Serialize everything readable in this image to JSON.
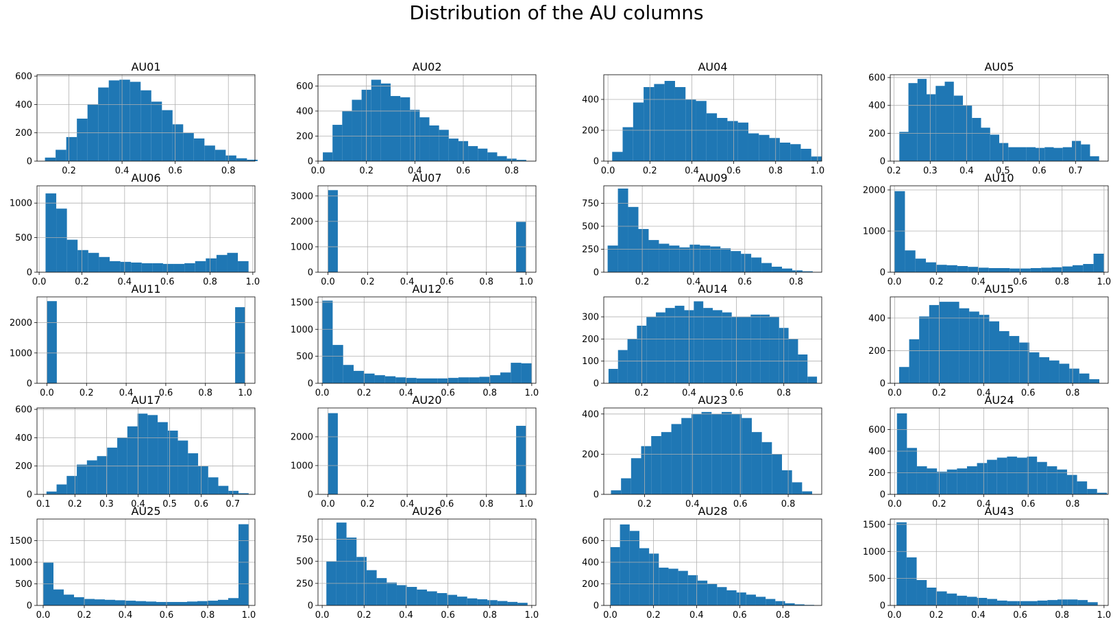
{
  "figure": {
    "title": "Distribution of the AU columns"
  },
  "colors": {
    "bar": "#1f77b4",
    "grid": "#b0b0b0",
    "axis": "#000000"
  },
  "chart_data": [
    {
      "type": "bar",
      "title": "AU01",
      "xlim": [
        0.08,
        0.9
      ],
      "ylim": [
        0,
        610
      ],
      "xticks": [
        "0.2",
        "0.4",
        "0.6",
        "0.8"
      ],
      "yticks": [
        "0",
        "200",
        "400",
        "600"
      ],
      "bins": [
        0.11,
        0.15,
        0.19,
        0.23,
        0.27,
        0.31,
        0.35,
        0.39,
        0.43,
        0.47,
        0.51,
        0.55,
        0.59,
        0.63,
        0.67,
        0.71,
        0.75,
        0.79,
        0.83,
        0.87
      ],
      "values": [
        25,
        80,
        170,
        300,
        400,
        520,
        570,
        575,
        560,
        500,
        420,
        360,
        260,
        200,
        160,
        110,
        80,
        40,
        20,
        10
      ],
      "grid": true
    },
    {
      "type": "bar",
      "title": "AU02",
      "xlim": [
        0.0,
        0.9
      ],
      "ylim": [
        0,
        690
      ],
      "xticks": [
        "0.0",
        "0.2",
        "0.4",
        "0.6",
        "0.8"
      ],
      "yticks": [
        "0",
        "200",
        "400",
        "600"
      ],
      "bins": [
        0.02,
        0.06,
        0.1,
        0.14,
        0.18,
        0.22,
        0.26,
        0.3,
        0.34,
        0.38,
        0.42,
        0.46,
        0.5,
        0.54,
        0.58,
        0.62,
        0.66,
        0.7,
        0.74,
        0.78,
        0.82
      ],
      "values": [
        70,
        290,
        400,
        490,
        570,
        650,
        620,
        520,
        510,
        410,
        350,
        285,
        250,
        180,
        160,
        120,
        100,
        70,
        40,
        20,
        10
      ],
      "grid": true
    },
    {
      "type": "bar",
      "title": "AU04",
      "xlim": [
        -0.02,
        1.02
      ],
      "ylim": [
        0,
        560
      ],
      "xticks": [
        "0.0",
        "0.2",
        "0.4",
        "0.6",
        "0.8",
        "1.0"
      ],
      "yticks": [
        "0",
        "200",
        "400"
      ],
      "bins": [
        0.02,
        0.07,
        0.12,
        0.17,
        0.22,
        0.27,
        0.32,
        0.37,
        0.42,
        0.47,
        0.52,
        0.57,
        0.62,
        0.67,
        0.72,
        0.77,
        0.82,
        0.87,
        0.92,
        0.97
      ],
      "values": [
        60,
        220,
        380,
        480,
        500,
        520,
        480,
        400,
        390,
        310,
        280,
        260,
        250,
        180,
        170,
        150,
        120,
        110,
        80,
        30
      ],
      "grid": true
    },
    {
      "type": "bar",
      "title": "AU05",
      "xlim": [
        0.19,
        0.79
      ],
      "ylim": [
        0,
        620
      ],
      "xticks": [
        "0.2",
        "0.3",
        "0.4",
        "0.5",
        "0.6",
        "0.7"
      ],
      "yticks": [
        "0",
        "200",
        "400",
        "600"
      ],
      "bins": [
        0.215,
        0.24,
        0.265,
        0.29,
        0.315,
        0.34,
        0.365,
        0.39,
        0.415,
        0.44,
        0.465,
        0.49,
        0.515,
        0.54,
        0.565,
        0.59,
        0.615,
        0.64,
        0.665,
        0.69,
        0.715,
        0.74
      ],
      "values": [
        210,
        560,
        590,
        480,
        540,
        570,
        470,
        400,
        310,
        240,
        190,
        130,
        100,
        100,
        100,
        95,
        100,
        95,
        100,
        145,
        120,
        35
      ],
      "grid": true
    },
    {
      "type": "bar",
      "title": "AU06",
      "xlim": [
        -0.01,
        1.01
      ],
      "ylim": [
        0,
        1250
      ],
      "xticks": [
        "0.0",
        "0.2",
        "0.4",
        "0.6",
        "0.8",
        "1.0"
      ],
      "yticks": [
        "0",
        "500",
        "1000"
      ],
      "bins": [
        0.03,
        0.08,
        0.13,
        0.18,
        0.23,
        0.28,
        0.33,
        0.38,
        0.43,
        0.48,
        0.53,
        0.58,
        0.63,
        0.68,
        0.73,
        0.78,
        0.83,
        0.88,
        0.93
      ],
      "values": [
        1140,
        920,
        470,
        320,
        280,
        220,
        160,
        150,
        140,
        130,
        130,
        120,
        120,
        130,
        160,
        200,
        250,
        280,
        160
      ],
      "grid": true
    },
    {
      "type": "bar",
      "title": "AU07",
      "xlim": [
        -0.05,
        1.05
      ],
      "ylim": [
        0,
        3400
      ],
      "xticks": [
        "0.0",
        "0.2",
        "0.4",
        "0.6",
        "0.8",
        "1.0"
      ],
      "yticks": [
        "0",
        "1000",
        "2000",
        "3000"
      ],
      "bins": [
        0.0,
        0.05,
        0.1,
        0.15,
        0.2,
        0.25,
        0.3,
        0.35,
        0.4,
        0.45,
        0.5,
        0.55,
        0.6,
        0.65,
        0.7,
        0.75,
        0.8,
        0.85,
        0.9,
        0.95
      ],
      "values": [
        3230,
        0,
        0,
        0,
        0,
        0,
        0,
        0,
        0,
        0,
        0,
        0,
        0,
        0,
        0,
        0,
        0,
        0,
        0,
        1980
      ],
      "grid": true
    },
    {
      "type": "bar",
      "title": "AU09",
      "xlim": [
        0.05,
        0.9
      ],
      "ylim": [
        0,
        940
      ],
      "xticks": [
        "0.2",
        "0.4",
        "0.6",
        "0.8"
      ],
      "yticks": [
        "0",
        "250",
        "500",
        "750"
      ],
      "bins": [
        0.065,
        0.105,
        0.145,
        0.185,
        0.225,
        0.265,
        0.305,
        0.345,
        0.385,
        0.425,
        0.465,
        0.505,
        0.545,
        0.585,
        0.625,
        0.665,
        0.705,
        0.745,
        0.785,
        0.825
      ],
      "values": [
        290,
        910,
        710,
        470,
        350,
        310,
        290,
        270,
        300,
        290,
        280,
        260,
        230,
        200,
        160,
        100,
        60,
        40,
        20,
        10
      ],
      "grid": true
    },
    {
      "type": "bar",
      "title": "AU10",
      "xlim": [
        -0.02,
        1.02
      ],
      "ylim": [
        0,
        2100
      ],
      "xticks": [
        "0.0",
        "0.2",
        "0.4",
        "0.6",
        "0.8",
        "1.0"
      ],
      "yticks": [
        "0",
        "1000",
        "2000"
      ],
      "bins": [
        0.0,
        0.05,
        0.1,
        0.15,
        0.2,
        0.25,
        0.3,
        0.35,
        0.4,
        0.45,
        0.5,
        0.55,
        0.6,
        0.65,
        0.7,
        0.75,
        0.8,
        0.85,
        0.9,
        0.95
      ],
      "values": [
        1970,
        530,
        330,
        240,
        180,
        170,
        150,
        130,
        110,
        100,
        100,
        90,
        90,
        100,
        110,
        120,
        140,
        170,
        200,
        450
      ],
      "grid": true
    },
    {
      "type": "bar",
      "title": "AU11",
      "xlim": [
        -0.05,
        1.05
      ],
      "ylim": [
        0,
        2850
      ],
      "xticks": [
        "0.0",
        "0.2",
        "0.4",
        "0.6",
        "0.8",
        "1.0"
      ],
      "yticks": [
        "0",
        "1000",
        "2000"
      ],
      "bins": [
        0.0,
        0.05,
        0.1,
        0.15,
        0.2,
        0.25,
        0.3,
        0.35,
        0.4,
        0.45,
        0.5,
        0.55,
        0.6,
        0.65,
        0.7,
        0.75,
        0.8,
        0.85,
        0.9,
        0.95
      ],
      "values": [
        2710,
        0,
        0,
        0,
        0,
        0,
        0,
        0,
        0,
        0,
        0,
        0,
        0,
        0,
        0,
        0,
        0,
        0,
        0,
        2510
      ],
      "grid": true
    },
    {
      "type": "bar",
      "title": "AU12",
      "xlim": [
        -0.02,
        1.02
      ],
      "ylim": [
        0,
        1600
      ],
      "xticks": [
        "0.0",
        "0.2",
        "0.4",
        "0.6",
        "0.8",
        "1.0"
      ],
      "yticks": [
        "0",
        "500",
        "1000",
        "1500"
      ],
      "bins": [
        0.0,
        0.05,
        0.1,
        0.15,
        0.2,
        0.25,
        0.3,
        0.35,
        0.4,
        0.45,
        0.5,
        0.55,
        0.6,
        0.65,
        0.7,
        0.75,
        0.8,
        0.85,
        0.9,
        0.95
      ],
      "values": [
        1530,
        710,
        340,
        230,
        180,
        150,
        130,
        110,
        100,
        90,
        90,
        90,
        100,
        110,
        110,
        120,
        150,
        200,
        380,
        370
      ],
      "grid": true
    },
    {
      "type": "bar",
      "title": "AU14",
      "xlim": [
        0.04,
        0.96
      ],
      "ylim": [
        0,
        390
      ],
      "xticks": [
        "0.2",
        "0.4",
        "0.6",
        "0.8"
      ],
      "yticks": [
        "0",
        "100",
        "200",
        "300"
      ],
      "bins": [
        0.06,
        0.1,
        0.14,
        0.18,
        0.22,
        0.26,
        0.3,
        0.34,
        0.38,
        0.42,
        0.46,
        0.5,
        0.54,
        0.58,
        0.62,
        0.66,
        0.7,
        0.74,
        0.78,
        0.82,
        0.86,
        0.9
      ],
      "values": [
        65,
        150,
        200,
        260,
        300,
        320,
        340,
        350,
        330,
        370,
        340,
        330,
        320,
        300,
        300,
        310,
        310,
        300,
        250,
        200,
        130,
        30
      ],
      "grid": true
    },
    {
      "type": "bar",
      "title": "AU15",
      "xlim": [
        -0.02,
        0.96
      ],
      "ylim": [
        0,
        530
      ],
      "xticks": [
        "0.0",
        "0.2",
        "0.4",
        "0.6",
        "0.8"
      ],
      "yticks": [
        "0",
        "200",
        "400"
      ],
      "bins": [
        0.02,
        0.065,
        0.11,
        0.155,
        0.2,
        0.245,
        0.29,
        0.335,
        0.38,
        0.425,
        0.47,
        0.515,
        0.56,
        0.605,
        0.65,
        0.695,
        0.74,
        0.785,
        0.83,
        0.875
      ],
      "values": [
        100,
        270,
        410,
        480,
        500,
        500,
        460,
        440,
        420,
        380,
        320,
        290,
        250,
        190,
        160,
        140,
        120,
        90,
        60,
        25
      ],
      "grid": true
    },
    {
      "type": "bar",
      "title": "AU17",
      "xlim": [
        0.08,
        0.77
      ],
      "ylim": [
        0,
        610
      ],
      "xticks": [
        "0.1",
        "0.2",
        "0.3",
        "0.4",
        "0.5",
        "0.6",
        "0.7"
      ],
      "yticks": [
        "0",
        "200",
        "400",
        "600"
      ],
      "bins": [
        0.11,
        0.142,
        0.174,
        0.206,
        0.238,
        0.27,
        0.302,
        0.334,
        0.366,
        0.398,
        0.43,
        0.462,
        0.494,
        0.526,
        0.558,
        0.59,
        0.622,
        0.654,
        0.686,
        0.718
      ],
      "values": [
        20,
        70,
        130,
        210,
        240,
        270,
        330,
        400,
        480,
        570,
        560,
        510,
        450,
        380,
        290,
        200,
        120,
        60,
        25,
        8
      ],
      "grid": true
    },
    {
      "type": "bar",
      "title": "AU20",
      "xlim": [
        -0.05,
        1.05
      ],
      "ylim": [
        0,
        3000
      ],
      "xticks": [
        "0.0",
        "0.2",
        "0.4",
        "0.6",
        "0.8",
        "1.0"
      ],
      "yticks": [
        "0",
        "1000",
        "2000"
      ],
      "bins": [
        0.0,
        0.05,
        0.1,
        0.15,
        0.2,
        0.25,
        0.3,
        0.35,
        0.4,
        0.45,
        0.5,
        0.55,
        0.6,
        0.65,
        0.7,
        0.75,
        0.8,
        0.85,
        0.9,
        0.95
      ],
      "values": [
        2820,
        0,
        0,
        0,
        0,
        0,
        0,
        0,
        0,
        0,
        0,
        0,
        0,
        0,
        0,
        0,
        0,
        0,
        0,
        2380
      ],
      "grid": true
    },
    {
      "type": "bar",
      "title": "AU23",
      "xlim": [
        0.03,
        0.94
      ],
      "ylim": [
        0,
        430
      ],
      "xticks": [
        "0.2",
        "0.4",
        "0.6",
        "0.8"
      ],
      "yticks": [
        "0",
        "200",
        "400"
      ],
      "bins": [
        0.06,
        0.102,
        0.144,
        0.186,
        0.228,
        0.27,
        0.312,
        0.354,
        0.396,
        0.438,
        0.48,
        0.522,
        0.564,
        0.606,
        0.648,
        0.69,
        0.732,
        0.774,
        0.816,
        0.858
      ],
      "values": [
        20,
        80,
        180,
        240,
        290,
        310,
        350,
        380,
        400,
        410,
        400,
        410,
        400,
        380,
        310,
        260,
        200,
        120,
        60,
        15
      ],
      "grid": true
    },
    {
      "type": "bar",
      "title": "AU24",
      "xlim": [
        -0.02,
        0.96
      ],
      "ylim": [
        0,
        800
      ],
      "xticks": [
        "0.0",
        "0.2",
        "0.4",
        "0.6",
        "0.8"
      ],
      "yticks": [
        "0",
        "200",
        "400",
        "600"
      ],
      "bins": [
        0.01,
        0.055,
        0.1,
        0.145,
        0.19,
        0.235,
        0.28,
        0.325,
        0.37,
        0.415,
        0.46,
        0.505,
        0.55,
        0.595,
        0.64,
        0.685,
        0.73,
        0.775,
        0.82,
        0.865,
        0.91
      ],
      "values": [
        750,
        430,
        260,
        240,
        210,
        230,
        240,
        260,
        290,
        320,
        340,
        350,
        340,
        350,
        300,
        260,
        230,
        180,
        120,
        50,
        15
      ],
      "grid": true
    },
    {
      "type": "bar",
      "title": "AU25",
      "xlim": [
        -0.03,
        1.03
      ],
      "ylim": [
        0,
        2000
      ],
      "xticks": [
        "0.0",
        "0.2",
        "0.4",
        "0.6",
        "0.8",
        "1.0"
      ],
      "yticks": [
        "0",
        "500",
        "1000",
        "1500"
      ],
      "bins": [
        0.0,
        0.05,
        0.1,
        0.15,
        0.2,
        0.25,
        0.3,
        0.35,
        0.4,
        0.45,
        0.5,
        0.55,
        0.6,
        0.65,
        0.7,
        0.75,
        0.8,
        0.85,
        0.9,
        0.95
      ],
      "values": [
        990,
        370,
        250,
        190,
        150,
        140,
        130,
        120,
        110,
        100,
        90,
        80,
        80,
        80,
        90,
        100,
        110,
        130,
        170,
        1880
      ],
      "grid": true
    },
    {
      "type": "bar",
      "title": "AU26",
      "xlim": [
        -0.02,
        1.02
      ],
      "ylim": [
        0,
        980
      ],
      "xticks": [
        "0.0",
        "0.2",
        "0.4",
        "0.6",
        "0.8",
        "1.0"
      ],
      "yticks": [
        "0",
        "250",
        "500",
        "750"
      ],
      "bins": [
        0.02,
        0.068,
        0.116,
        0.164,
        0.212,
        0.26,
        0.308,
        0.356,
        0.404,
        0.452,
        0.5,
        0.548,
        0.596,
        0.644,
        0.692,
        0.74,
        0.788,
        0.836,
        0.884,
        0.932
      ],
      "values": [
        500,
        940,
        770,
        550,
        400,
        310,
        260,
        230,
        210,
        180,
        160,
        140,
        120,
        100,
        80,
        70,
        60,
        50,
        40,
        30
      ],
      "grid": true
    },
    {
      "type": "bar",
      "title": "AU28",
      "xlim": [
        -0.03,
        0.98
      ],
      "ylim": [
        0,
        800
      ],
      "xticks": [
        "0.0",
        "0.2",
        "0.4",
        "0.6",
        "0.8"
      ],
      "yticks": [
        "0",
        "200",
        "400",
        "600"
      ],
      "bins": [
        0.0,
        0.045,
        0.09,
        0.135,
        0.18,
        0.225,
        0.27,
        0.315,
        0.36,
        0.405,
        0.45,
        0.495,
        0.54,
        0.585,
        0.63,
        0.675,
        0.72,
        0.765,
        0.81,
        0.855,
        0.9
      ],
      "values": [
        540,
        750,
        690,
        530,
        480,
        350,
        340,
        320,
        280,
        230,
        200,
        170,
        140,
        120,
        100,
        80,
        60,
        40,
        20,
        10,
        5
      ],
      "grid": true
    },
    {
      "type": "bar",
      "title": "AU43",
      "xlim": [
        -0.02,
        1.02
      ],
      "ylim": [
        0,
        1600
      ],
      "xticks": [
        "0.0",
        "0.2",
        "0.4",
        "0.6",
        "0.8",
        "1.0"
      ],
      "yticks": [
        "0",
        "500",
        "1000",
        "1500"
      ],
      "bins": [
        0.01,
        0.058,
        0.106,
        0.154,
        0.202,
        0.25,
        0.298,
        0.346,
        0.394,
        0.442,
        0.49,
        0.538,
        0.586,
        0.634,
        0.682,
        0.73,
        0.778,
        0.826,
        0.874,
        0.922
      ],
      "values": [
        1540,
        890,
        470,
        330,
        260,
        220,
        180,
        160,
        140,
        120,
        90,
        80,
        80,
        80,
        90,
        100,
        110,
        110,
        100,
        60
      ],
      "grid": true
    }
  ]
}
